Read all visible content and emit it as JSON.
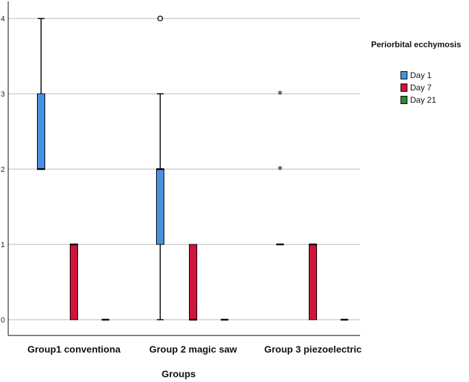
{
  "chart_data": {
    "type": "boxplot",
    "xlabel": "Groups",
    "ylabel": "",
    "ylim": [
      -0.2,
      4.2
    ],
    "yticks": [
      0,
      1,
      2,
      3,
      4
    ],
    "grid": "horizontal",
    "legend": {
      "title": "Periorbital ecchymosis",
      "position": "right"
    },
    "categories": [
      "Group1 conventiona",
      "Group 2 magic saw",
      "Group 3 piezoelectric"
    ],
    "series": [
      {
        "name": "Day 1",
        "color": "#4a90e2",
        "boxes": [
          {
            "min": 2,
            "q1": 2,
            "median": 2,
            "q3": 3,
            "max": 4,
            "outliers": []
          },
          {
            "min": 0,
            "q1": 1,
            "median": 2,
            "q3": 2,
            "max": 3,
            "outliers": [
              {
                "value": 4,
                "marker": "circle"
              }
            ]
          },
          {
            "min": 1,
            "q1": 1,
            "median": 1,
            "q3": 1,
            "max": 1,
            "outliers": [
              {
                "value": 2,
                "marker": "star"
              },
              {
                "value": 3,
                "marker": "star"
              }
            ]
          }
        ]
      },
      {
        "name": "Day 7",
        "color": "#d0143c",
        "boxes": [
          {
            "min": 0,
            "q1": 0,
            "median": 1,
            "q3": 1,
            "max": 1,
            "outliers": []
          },
          {
            "min": 0,
            "q1": 0,
            "median": 0,
            "q3": 1,
            "max": 1,
            "outliers": []
          },
          {
            "min": 0,
            "q1": 0,
            "median": 1,
            "q3": 1,
            "max": 1,
            "outliers": []
          }
        ]
      },
      {
        "name": "Day 21",
        "color": "#2e8b2e",
        "boxes": [
          {
            "min": 0,
            "q1": 0,
            "median": 0,
            "q3": 0,
            "max": 0,
            "outliers": []
          },
          {
            "min": 0,
            "q1": 0,
            "median": 0,
            "q3": 0,
            "max": 0,
            "outliers": []
          },
          {
            "min": 0,
            "q1": 0,
            "median": 0,
            "q3": 0,
            "max": 0,
            "outliers": []
          }
        ]
      }
    ]
  }
}
